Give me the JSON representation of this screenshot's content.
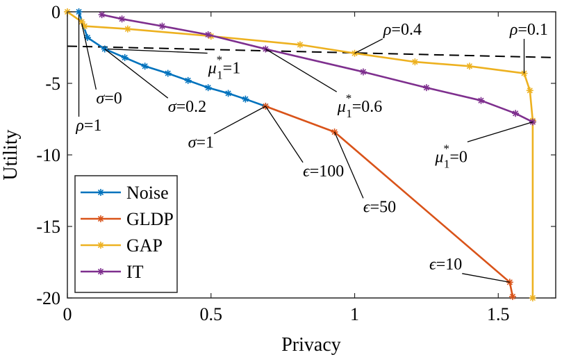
{
  "chart_data": {
    "type": "line",
    "xlabel": "Privacy",
    "ylabel": "Utility",
    "xlim": [
      0,
      1.7
    ],
    "ylim": [
      -20,
      0
    ],
    "xticks": [
      0,
      0.5,
      1,
      1.5
    ],
    "xtick_labels": [
      "0",
      "0.5",
      "1",
      "1.5"
    ],
    "yticks": [
      0,
      -5,
      -10,
      -15,
      -20
    ],
    "ytick_labels": [
      "0",
      "-5",
      "-10",
      "-15",
      "-20"
    ],
    "grid": false,
    "legend_position": "bottom-left",
    "series": [
      {
        "name": "Noise",
        "color": "#0072BD",
        "x": [
          0.04,
          0.07,
          0.13,
          0.2,
          0.27,
          0.35,
          0.42,
          0.49,
          0.56,
          0.62,
          0.69
        ],
        "y": [
          0,
          -1.8,
          -2.6,
          -3.2,
          -3.8,
          -4.3,
          -4.8,
          -5.3,
          -5.7,
          -6.1,
          -6.6
        ]
      },
      {
        "name": "GLDP",
        "color": "#D95319",
        "x": [
          0.69,
          0.93,
          1.54,
          1.55
        ],
        "y": [
          -6.6,
          -8.4,
          -18.9,
          -19.9
        ]
      },
      {
        "name": "GAP",
        "color": "#EDB120",
        "x": [
          0.0,
          0.05,
          0.06,
          0.21,
          0.5,
          0.81,
          1.0,
          1.21,
          1.4,
          1.59,
          1.61,
          1.62,
          1.62
        ],
        "y": [
          0,
          -0.7,
          -1.0,
          -1.2,
          -1.7,
          -2.3,
          -2.9,
          -3.5,
          -3.8,
          -4.3,
          -5.5,
          -7.6,
          -20
        ]
      },
      {
        "name": "IT",
        "color": "#7E2F8E",
        "x": [
          0.12,
          0.19,
          0.33,
          0.49,
          0.69,
          1.03,
          1.25,
          1.44,
          1.56,
          1.62
        ],
        "y": [
          -0.2,
          -0.5,
          -1.0,
          -1.6,
          -2.6,
          -4.2,
          -5.3,
          -6.2,
          -7.1,
          -7.7
        ]
      }
    ],
    "reference_line": {
      "style": "dashed",
      "color": "#000000",
      "x": [
        0.0,
        1.7
      ],
      "y": [
        -2.4,
        -3.2
      ]
    },
    "annotations": [
      {
        "sym": "ρ",
        "rest": "=1",
        "tx": 0.03,
        "ty": -8.3,
        "px": 0.04,
        "py": -0.2
      },
      {
        "sym": "σ",
        "rest": "=0",
        "tx": 0.1,
        "ty": -6.4,
        "px": 0.05,
        "py": -0.8
      },
      {
        "sym": "σ",
        "rest": "=0.2",
        "tx": 0.35,
        "ty": -7.0,
        "px": 0.13,
        "py": -2.6
      },
      {
        "sym": "σ",
        "rest": "=1",
        "tx": 0.42,
        "ty": -9.5,
        "px": 0.69,
        "py": -6.6
      },
      {
        "sym": "μ",
        "rest": "=1",
        "sup": "*",
        "sub": "1",
        "tx": 0.49,
        "ty": -4.3,
        "px": 0.14,
        "py": -2.6
      },
      {
        "sym": "μ",
        "rest": "=0.6",
        "sup": "*",
        "sub": "1",
        "tx": 0.94,
        "ty": -7.0,
        "px": 0.69,
        "py": -2.6
      },
      {
        "sym": "μ",
        "rest": "=0",
        "sup": "*",
        "sub": "1",
        "tx": 1.28,
        "ty": -10.5,
        "px": 1.62,
        "py": -7.7
      },
      {
        "sym": "ρ",
        "rest": "=0.4",
        "tx": 1.1,
        "ty": -1.6,
        "px": 1.0,
        "py": -2.9
      },
      {
        "sym": "ρ",
        "rest": "=0.1",
        "tx": 1.54,
        "ty": -1.6,
        "px": 1.59,
        "py": -4.3
      },
      {
        "sym": "ϵ",
        "rest": "=100",
        "tx": 0.82,
        "ty": -11.5,
        "px": 0.69,
        "py": -6.6
      },
      {
        "sym": "ϵ",
        "rest": "=50",
        "tx": 1.03,
        "ty": -14.0,
        "px": 0.93,
        "py": -8.4
      },
      {
        "sym": "ϵ",
        "rest": "=10",
        "tx": 1.26,
        "ty": -18.0,
        "px": 1.54,
        "py": -18.9
      }
    ]
  }
}
